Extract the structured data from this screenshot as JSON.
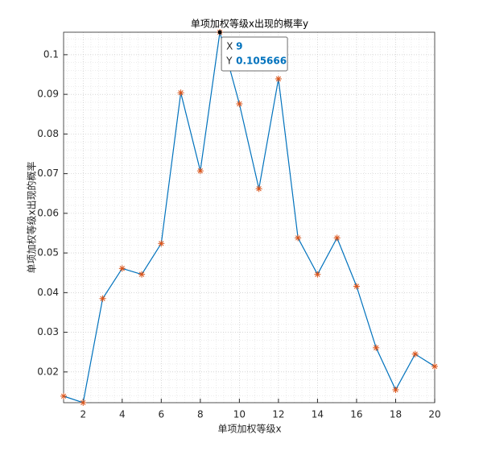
{
  "chart_data": {
    "type": "line",
    "title": "单项加权等级x出现的概率y",
    "x_label": "单项加权等级x",
    "y_label": "单项加权等级x出现的概率",
    "x": [
      1,
      2,
      3,
      4,
      5,
      6,
      7,
      8,
      9,
      10,
      11,
      12,
      13,
      14,
      15,
      16,
      17,
      18,
      19,
      20
    ],
    "series": [
      {
        "color": "#0072bd",
        "marker_color": "#d95319",
        "values": [
          0.0139,
          0.01225,
          0.0385,
          0.0461,
          0.0446,
          0.0524,
          0.0904,
          0.0707,
          0.105666,
          0.0876,
          0.0662,
          0.0939,
          0.0538,
          0.0446,
          0.0538,
          0.0416,
          0.0261,
          0.0155,
          0.0245,
          0.0214
        ]
      }
    ],
    "xlim": [
      1,
      20
    ],
    "xticks": [
      2,
      4,
      6,
      8,
      10,
      12,
      14,
      16,
      18,
      20
    ],
    "ylim": [
      0.01225,
      0.105666
    ],
    "yticks": [
      0.02,
      0.03,
      0.04,
      0.05,
      0.06,
      0.07,
      0.08,
      0.09,
      0.1
    ],
    "grid": true,
    "minor_grid": true,
    "datatip": {
      "index": 8,
      "x_label": "X",
      "y_label": "Y"
    }
  }
}
